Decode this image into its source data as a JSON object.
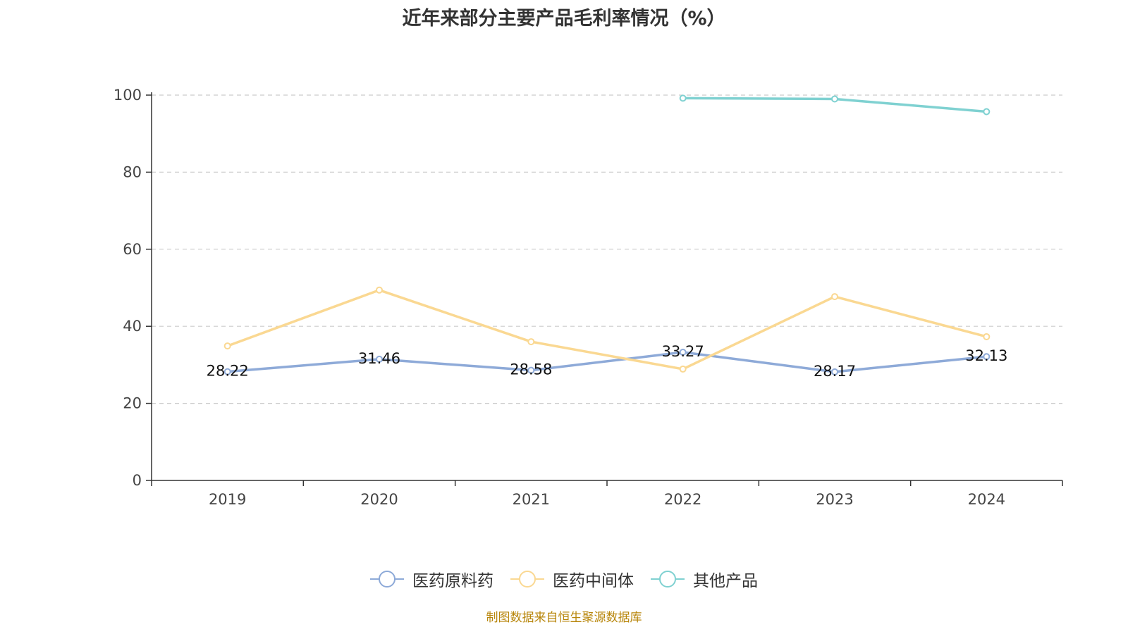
{
  "title": "近年来部分主要产品毛利率情况（%）",
  "source_note": "制图数据来自恒生聚源数据库",
  "chart_data": {
    "type": "line",
    "title": "近年来部分主要产品毛利率情况（%）",
    "categories": [
      "2019",
      "2020",
      "2021",
      "2022",
      "2023",
      "2024"
    ],
    "ylim": [
      0,
      100
    ],
    "yticks": [
      0,
      20,
      40,
      60,
      80,
      100
    ],
    "grid": true,
    "legend_position": "bottom",
    "series": [
      {
        "name": "医药原料药",
        "color": "#8eaad8",
        "show_labels": true,
        "values": [
          28.22,
          31.46,
          28.58,
          33.27,
          28.17,
          32.13
        ],
        "labels": [
          "28.22",
          "31.46",
          "28.58",
          "33.27",
          "28.17",
          "32.13"
        ]
      },
      {
        "name": "医药中间体",
        "color": "#fad892",
        "show_labels": false,
        "values": [
          34.9,
          49.4,
          36.0,
          28.9,
          47.7,
          37.3
        ]
      },
      {
        "name": "其他产品",
        "color": "#7fd1d1",
        "show_labels": false,
        "values": [
          null,
          null,
          null,
          99.2,
          99.0,
          95.7
        ]
      }
    ]
  }
}
